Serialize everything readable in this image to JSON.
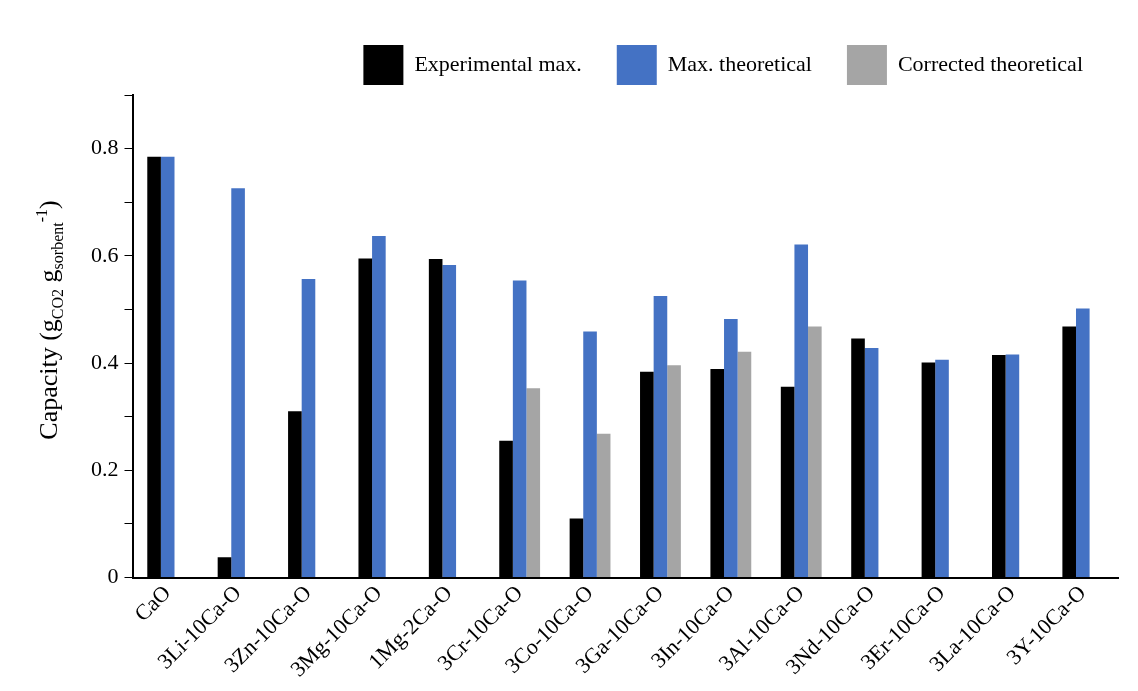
{
  "chart_data": {
    "type": "bar",
    "ylabel": "Capacity (g$_{CO2}$ g$_{sorbent}$$^{-1}$)",
    "categories": [
      "CaO",
      "3Li-10Ca-O",
      "3Zn-10Ca-O",
      "3Mg-10Ca-O",
      "1Mg-2Ca-O",
      "3Cr-10Ca-O",
      "3Co-10Ca-O",
      "3Ga-10Ca-O",
      "3In-10Ca-O",
      "3Al-10Ca-O",
      "3Nd-10Ca-O",
      "3Er-10Ca-O",
      "3La-10Ca-O",
      "3Y-10Ca-O"
    ],
    "series": [
      {
        "name": "Experimental max.",
        "color": "#000000",
        "values": [
          0.785,
          0.038,
          0.31,
          0.595,
          0.594,
          0.255,
          0.11,
          0.384,
          0.389,
          0.356,
          0.446,
          0.401,
          0.415,
          0.468
        ]
      },
      {
        "name": "Max. theoretical",
        "color": "#4472c4",
        "values": [
          0.785,
          0.726,
          0.557,
          0.637,
          0.583,
          0.554,
          0.459,
          0.525,
          0.482,
          0.621,
          0.428,
          0.406,
          0.416,
          0.502
        ]
      },
      {
        "name": "Corrected theoretical",
        "color": "#a5a5a5",
        "values": [
          null,
          null,
          null,
          null,
          null,
          0.353,
          0.268,
          0.396,
          0.421,
          0.468,
          null,
          null,
          null,
          null
        ]
      }
    ],
    "ylim": [
      0,
      0.9
    ],
    "yticks": [
      0,
      {
        "value": 0.1,
        "label": null
      },
      0.2,
      {
        "value": 0.3,
        "label": null
      },
      0.4,
      {
        "value": 0.5,
        "label": null
      },
      0.6,
      {
        "value": 0.7,
        "label": null
      },
      0.8,
      {
        "value": 0.9,
        "label": null
      }
    ],
    "grid": false,
    "legend": "top right"
  }
}
